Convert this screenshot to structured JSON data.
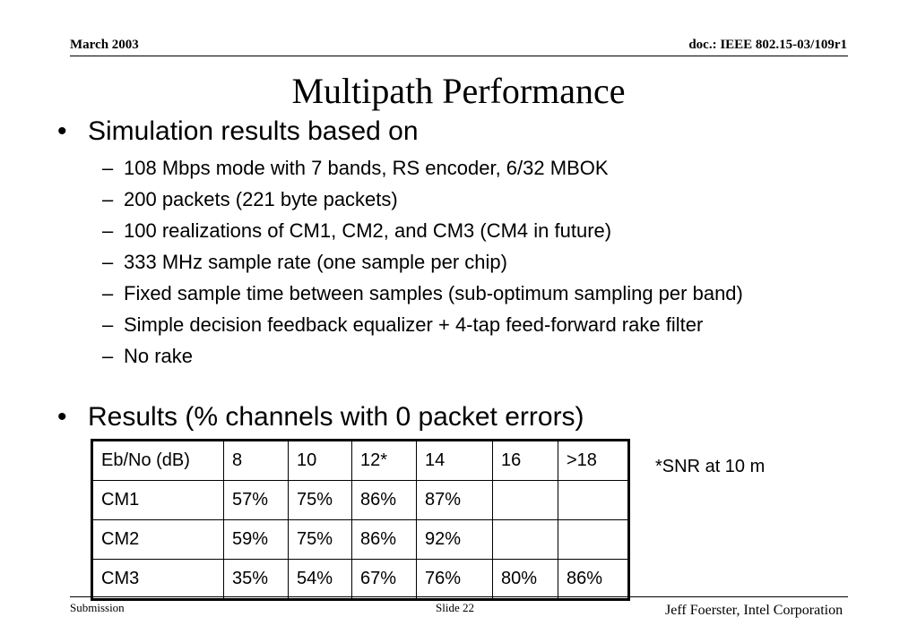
{
  "header": {
    "date": "March 2003",
    "doc": "doc.: IEEE 802.15-03/109r1"
  },
  "title": "Multipath Performance",
  "bullets": {
    "b1": "Simulation results based on",
    "sub": [
      "108 Mbps mode with 7 bands, RS encoder, 6/32 MBOK",
      "200 packets (221 byte packets)",
      "100 realizations of CM1, CM2, and CM3 (CM4 in future)",
      "333 MHz sample rate (one sample per chip)",
      "Fixed sample time between samples (sub-optimum sampling per band)",
      "Simple decision feedback equalizer + 4-tap feed-forward rake filter",
      "No rake"
    ],
    "b2": "Results (% channels with 0 packet errors)"
  },
  "table": {
    "rows": [
      [
        "Eb/No (dB)",
        "8",
        "10",
        "12*",
        "14",
        "16",
        ">18"
      ],
      [
        "CM1",
        "57%",
        "75%",
        "86%",
        "87%",
        "",
        ""
      ],
      [
        "CM2",
        "59%",
        "75%",
        "86%",
        "92%",
        "",
        ""
      ],
      [
        "CM3",
        "35%",
        "54%",
        "67%",
        "76%",
        "80%",
        "86%"
      ]
    ]
  },
  "note": "*SNR at 10 m",
  "footer": {
    "left": "Submission",
    "center": "Slide 22",
    "right": "Jeff Foerster, Intel Corporation"
  }
}
